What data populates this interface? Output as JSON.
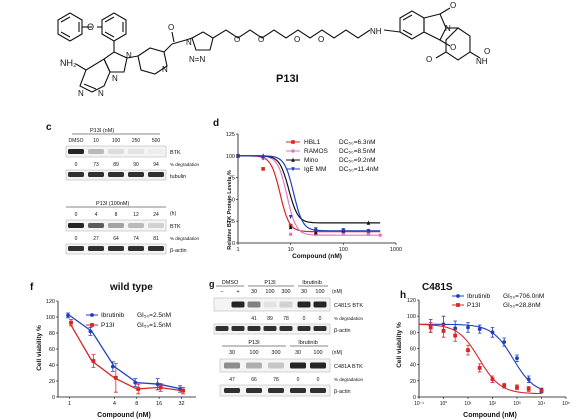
{
  "structure": {
    "compound_label": "P13I",
    "atoms": {
      "NH2": "NH₂",
      "N": "N",
      "O": "O",
      "H": "H",
      "NH": "NH",
      "N_eq": "N=N"
    }
  },
  "panel_c": {
    "letter": "c",
    "blot1": {
      "header": "P13I (nM)",
      "lanes": [
        "DMSO",
        "10",
        "100",
        "250",
        "500"
      ],
      "bands": [
        "BTK",
        "tubulin"
      ],
      "degradation_label": "% degradation",
      "degradation_values": [
        "0",
        "73",
        "89",
        "90",
        "94"
      ],
      "degradation_intensity": [
        0.95,
        0.3,
        0.15,
        0.12,
        0.08
      ]
    },
    "blot2": {
      "header": "P13I (100nM)",
      "unit": "(h)",
      "lanes": [
        "0",
        "4",
        "8",
        "12",
        "24"
      ],
      "bands": [
        "BTK",
        "β-actin"
      ],
      "degradation_label": "% degradation",
      "degradation_values": [
        "0",
        "27",
        "64",
        "74",
        "81"
      ],
      "degradation_intensity": [
        0.95,
        0.7,
        0.4,
        0.3,
        0.2
      ]
    }
  },
  "panel_d": {
    "letter": "d",
    "ylabel": "Relative BTK Protein Levels %",
    "xlabel": "Compound (nM)",
    "legend": [
      {
        "name": "HBL1",
        "dc": "DC₅₀=6.3nM",
        "color": "#d62728",
        "dc_color": "#d62728",
        "marker": "square"
      },
      {
        "name": "RAMOS",
        "dc": "DC₅₀=8.5nM",
        "color": "#e377c2",
        "dc_color": "#e377c2",
        "marker": "circle"
      },
      {
        "name": "Mino",
        "dc": "DC₅₀=9.2nM",
        "color": "#111111",
        "dc_color": "#111111",
        "marker": "triangle"
      },
      {
        "name": "IgE MM",
        "dc": "DC₅₀=11.4nM",
        "color": "#1f3fbf",
        "dc_color": "#1f3fbf",
        "marker": "triangle-down"
      }
    ]
  },
  "panel_f": {
    "letter": "f",
    "title": "wild type",
    "ylabel": "Cell viability %",
    "xlabel": "Compound (nM)",
    "legend": [
      {
        "name": "Ibrutinib",
        "gi": "GI₅₀=2.5nM",
        "color": "#1f3fbf"
      },
      {
        "name": "P13I",
        "gi": "GI₅₀=1.5nM",
        "color": "#d62728"
      }
    ]
  },
  "panel_g": {
    "letter": "g",
    "blot1": {
      "headers": [
        "DMSO",
        "P13I",
        "Ibrutinib"
      ],
      "sub": [
        "−",
        "+",
        "30",
        "100",
        "300",
        "30",
        "100"
      ],
      "unit": "(nM)",
      "bands": [
        "C481S BTK",
        "β-actin"
      ],
      "degradation_label": "% degradation",
      "degradation_values": [
        "",
        "",
        "41",
        "89",
        "78",
        "0",
        "0"
      ],
      "intensity": [
        0.05,
        0.95,
        0.55,
        0.12,
        0.2,
        0.95,
        0.95
      ]
    },
    "blot2": {
      "headers": [
        "P13I",
        "Ibrutinib"
      ],
      "sub": [
        "30",
        "100",
        "300",
        "30",
        "100"
      ],
      "unit": "(nM)",
      "bands": [
        "C481A BTK",
        "β-actin"
      ],
      "degradation_label": "% degradation",
      "degradation_values": [
        "47",
        "66",
        "78",
        "0",
        "0"
      ],
      "intensity": [
        0.5,
        0.35,
        0.25,
        0.95,
        0.95
      ]
    }
  },
  "panel_h": {
    "letter": "h",
    "title": "C481S",
    "ylabel": "Cell viability %",
    "xlabel": "Compound (nM)",
    "legend": [
      {
        "name": "Ibrutinib",
        "gi": "GI₅₀=706.0nM",
        "color": "#1f3fbf"
      },
      {
        "name": "P13I",
        "gi": "GI₅₀=28.8nM",
        "color": "#d62728"
      }
    ]
  },
  "chart_data": [
    {
      "type": "line",
      "panel": "d",
      "xlabel": "Compound (nM)",
      "ylabel": "Relative BTK Protein Levels %",
      "xscale": "log",
      "xlim": [
        1,
        1000
      ],
      "ylim": [
        0,
        125
      ],
      "xticks": [
        "1",
        "10",
        "100",
        "1000"
      ],
      "yticks": [
        "0",
        "25",
        "50",
        "75",
        "100",
        "125"
      ],
      "series": [
        {
          "name": "HBL1",
          "x": [
            1,
            3,
            10,
            30,
            100,
            300
          ],
          "y": [
            100,
            85,
            20,
            14,
            14,
            13
          ],
          "ec50": 6.3
        },
        {
          "name": "RAMOS",
          "x": [
            1,
            3,
            10,
            30,
            100,
            300,
            500
          ],
          "y": [
            100,
            97,
            10,
            10,
            11,
            10,
            9
          ],
          "ec50": 8.5
        },
        {
          "name": "Mino",
          "x": [
            1,
            3,
            10,
            30,
            100,
            300
          ],
          "y": [
            100,
            100,
            18,
            12,
            14,
            23
          ],
          "ec50": 9.2
        },
        {
          "name": "IgE MM",
          "x": [
            1,
            3,
            10,
            30,
            100,
            300
          ],
          "y": [
            100,
            98,
            30,
            16,
            15,
            14
          ],
          "ec50": 11.4
        }
      ]
    },
    {
      "type": "line",
      "panel": "f",
      "title": "wild type",
      "xlabel": "Compound (nM)",
      "ylabel": "Cell viability %",
      "xscale": "log",
      "xlim": [
        0.7,
        50
      ],
      "ylim": [
        0,
        120
      ],
      "xticks": [
        "1",
        "4",
        "8",
        "16",
        "32"
      ],
      "yticks": [
        "0",
        "20",
        "40",
        "60",
        "80",
        "100",
        "120"
      ],
      "series": [
        {
          "name": "Ibrutinib",
          "x": [
            1,
            2,
            4,
            8,
            16,
            32
          ],
          "y": [
            102,
            82,
            38,
            18,
            16,
            10
          ],
          "err": [
            3,
            5,
            6,
            5,
            7,
            4
          ]
        },
        {
          "name": "P13I",
          "x": [
            1,
            2,
            4,
            8,
            16,
            32
          ],
          "y": [
            93,
            45,
            24,
            10,
            12,
            8
          ],
          "err": [
            4,
            8,
            18,
            6,
            5,
            4
          ]
        }
      ]
    },
    {
      "type": "scatter",
      "panel": "h",
      "title": "C481S",
      "xlabel": "Compound (nM)",
      "ylabel": "Cell viability %",
      "xscale": "log",
      "xlim": [
        0.1,
        100000
      ],
      "ylim": [
        0,
        120
      ],
      "xticks": [
        "10⁻¹",
        "10⁰",
        "10¹",
        "10²",
        "10³",
        "10⁴",
        "10⁵"
      ],
      "yticks": [
        "0",
        "20",
        "40",
        "60",
        "80",
        "100",
        "120"
      ],
      "series": [
        {
          "name": "Ibrutinib",
          "x": [
            0.3,
            1,
            3,
            10,
            30,
            100,
            300,
            1000,
            3000,
            10000
          ],
          "y": [
            88,
            90,
            85,
            86,
            84,
            80,
            68,
            48,
            22,
            8
          ],
          "err": [
            8,
            10,
            9,
            6,
            5,
            6,
            5,
            4,
            4,
            3
          ]
        },
        {
          "name": "P13I",
          "x": [
            0.3,
            1,
            3,
            10,
            30,
            100,
            300,
            1000,
            3000,
            10000
          ],
          "y": [
            86,
            82,
            76,
            58,
            36,
            22,
            14,
            12,
            10,
            8
          ],
          "err": [
            6,
            8,
            7,
            6,
            5,
            4,
            3,
            3,
            3,
            2
          ]
        }
      ]
    }
  ]
}
